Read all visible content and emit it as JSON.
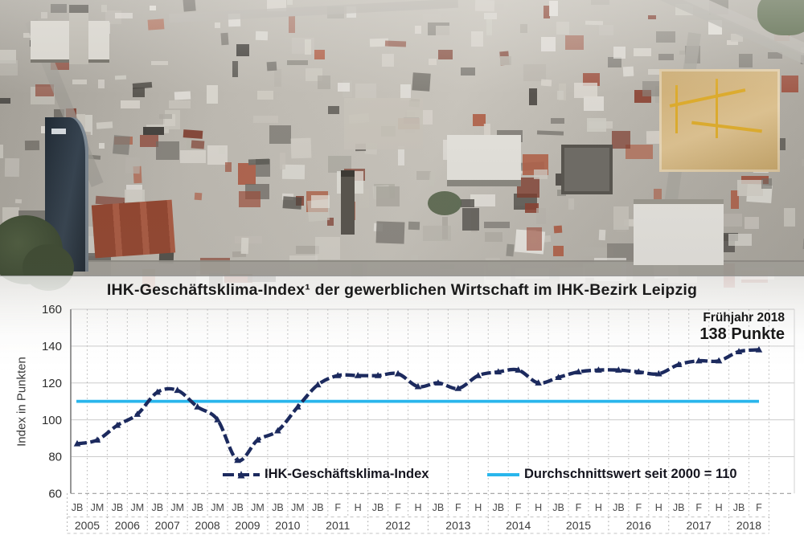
{
  "chart": {
    "title": "IHK-Geschäftsklima-Index¹ der gewerblichen Wirtschaft im IHK-Bezirk Leipzig",
    "y_axis_title": "Index in Punkten",
    "annotation": {
      "line1": "Frühjahr 2018",
      "line2": "138 Punkte"
    },
    "colors": {
      "index_line": "#1c2a5e",
      "average_line": "#29b6ec",
      "grid": "#cbcbcb",
      "axis": "#8a8a8a",
      "text": "#1a1a1a"
    }
  },
  "chart_data": {
    "type": "line",
    "title": "IHK-Geschäftsklima-Index¹ der gewerblichen Wirtschaft im IHK-Bezirk Leipzig",
    "xlabel": "",
    "ylabel": "Index in Punkten",
    "ylim": [
      60,
      160
    ],
    "yticks": [
      160,
      140,
      120,
      100,
      80,
      60
    ],
    "grid": true,
    "legend_position": "bottom-inside",
    "x_groups": [
      {
        "year": "2005",
        "periods": [
          "JB",
          "JM"
        ]
      },
      {
        "year": "2006",
        "periods": [
          "JB",
          "JM"
        ]
      },
      {
        "year": "2007",
        "periods": [
          "JB",
          "JM"
        ]
      },
      {
        "year": "2008",
        "periods": [
          "JB",
          "JM"
        ]
      },
      {
        "year": "2009",
        "periods": [
          "JB",
          "JM"
        ]
      },
      {
        "year": "2010",
        "periods": [
          "JB",
          "JM"
        ]
      },
      {
        "year": "2011",
        "periods": [
          "JB",
          "F",
          "H"
        ]
      },
      {
        "year": "2012",
        "periods": [
          "JB",
          "F",
          "H"
        ]
      },
      {
        "year": "2013",
        "periods": [
          "JB",
          "F",
          "H"
        ]
      },
      {
        "year": "2014",
        "periods": [
          "JB",
          "F",
          "H"
        ]
      },
      {
        "year": "2015",
        "periods": [
          "JB",
          "F",
          "H"
        ]
      },
      {
        "year": "2016",
        "periods": [
          "JB",
          "F",
          "H"
        ]
      },
      {
        "year": "2017",
        "periods": [
          "JB",
          "F",
          "H"
        ]
      },
      {
        "year": "2018",
        "periods": [
          "JB",
          "F"
        ]
      }
    ],
    "series": [
      {
        "name": "IHK-Geschäftsklima-Index",
        "color": "#1c2a5e",
        "style": "dashed-with-triangle-markers",
        "values": [
          87,
          89,
          97,
          103,
          115,
          116,
          107,
          100,
          78,
          89,
          94,
          107,
          119,
          124,
          124,
          124,
          125,
          118,
          120,
          117,
          124,
          126,
          127,
          120,
          123,
          126,
          127,
          127,
          126,
          125,
          130,
          132,
          132,
          137,
          138
        ]
      }
    ],
    "reference_line": {
      "value": 110,
      "label": "Durchschnittswert seit 2000 = 110",
      "color": "#29b6ec"
    },
    "latest_point": {
      "year": "2018",
      "period": "F",
      "value": 138
    }
  }
}
